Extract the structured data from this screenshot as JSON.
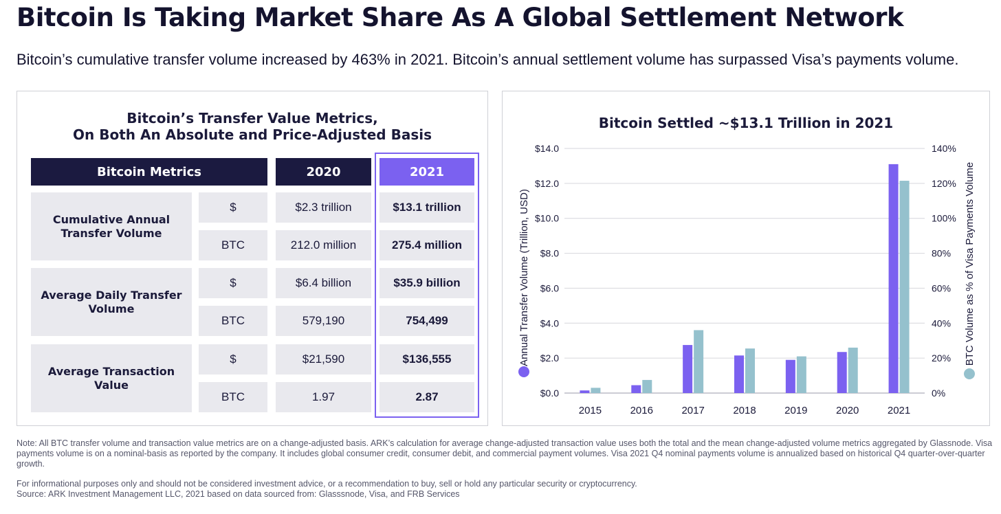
{
  "page": {
    "title": "Bitcoin Is Taking Market Share As A Global Settlement Network",
    "subtitle": "Bitcoin’s cumulative transfer volume increased by 463% in 2021. Bitcoin’s annual settlement volume has surpassed Visa’s payments volume."
  },
  "table": {
    "title_line1": "Bitcoin’s Transfer Value Metrics,",
    "title_line2": "On Both An Absolute and Price-Adjusted Basis",
    "headers": [
      "Bitcoin Metrics",
      "2020",
      "2021"
    ],
    "rows": [
      {
        "metric": "Cumulative Annual Transfer Volume",
        "units": [
          {
            "unit": "$",
            "y2020": "$2.3 trillion",
            "y2021": "$13.1 trillion"
          },
          {
            "unit": "BTC",
            "y2020": "212.0 million",
            "y2021": "275.4 million"
          }
        ]
      },
      {
        "metric": "Average Daily Transfer Volume",
        "units": [
          {
            "unit": "$",
            "y2020": "$6.4 billion",
            "y2021": "$35.9 billion"
          },
          {
            "unit": "BTC",
            "y2020": "579,190",
            "y2021": "754,499"
          }
        ]
      },
      {
        "metric": "Average Transaction Value",
        "units": [
          {
            "unit": "$",
            "y2020": "$21,590",
            "y2021": "$136,555"
          },
          {
            "unit": "BTC",
            "y2020": "1.97",
            "y2021": "2.87"
          }
        ]
      }
    ]
  },
  "colors": {
    "navy": "#1b1a40",
    "purple": "#7b61f0",
    "teal": "#95c1cd",
    "cell_bg": "#e9e9ee"
  },
  "chart_data": {
    "type": "bar",
    "title": "Bitcoin Settled ~$13.1 Trillion in 2021",
    "categories": [
      "2015",
      "2016",
      "2017",
      "2018",
      "2019",
      "2020",
      "2021"
    ],
    "series": [
      {
        "name": "",
        "axis": "left",
        "color": "#7b61f0",
        "values": [
          0.15,
          0.45,
          2.75,
          2.15,
          1.9,
          2.35,
          13.1
        ]
      },
      {
        "name": "",
        "axis": "right",
        "color": "#95c1cd",
        "values": [
          3,
          7.5,
          36,
          25.5,
          21,
          26,
          121.5
        ]
      }
    ],
    "ylabel": "Annual Transfer Volume (Trillion, USD)",
    "ylabel_right": "BTC Volume as % of Visa Payments Volume",
    "ylim": [
      0,
      14
    ],
    "ylim_right": [
      0,
      140
    ],
    "yticks": [
      "$0.0",
      "$2.0",
      "$4.0",
      "$6.0",
      "$8.0",
      "$10.0",
      "$12.0",
      "$14.0"
    ],
    "yticks_right": [
      "0%",
      "20%",
      "40%",
      "60%",
      "80%",
      "100%",
      "120%",
      "140%"
    ],
    "grid": true
  },
  "footer": {
    "note": "Note: All BTC transfer volume and transaction value metrics are on a change-adjusted basis. ARK’s calculation for average change-adjusted transaction value uses both the total and the mean change-adjusted volume metrics aggregated by Glassnode. Visa payments volume is on a nominal-basis as reported by the company. It includes global consumer credit, consumer debit, and commercial payment volumes. Visa 2021 Q4 nominal payments volume is annualized based on historical Q4 quarter-over-quarter growth.",
    "disclaimer": "For informational purposes only and should not be considered investment advice, or a recommendation to buy, sell or hold any particular security or cryptocurrency.",
    "source": "Source: ARK Investment Management LLC, 2021 based on data sourced from: Glasssnode, Visa, and FRB Services"
  }
}
